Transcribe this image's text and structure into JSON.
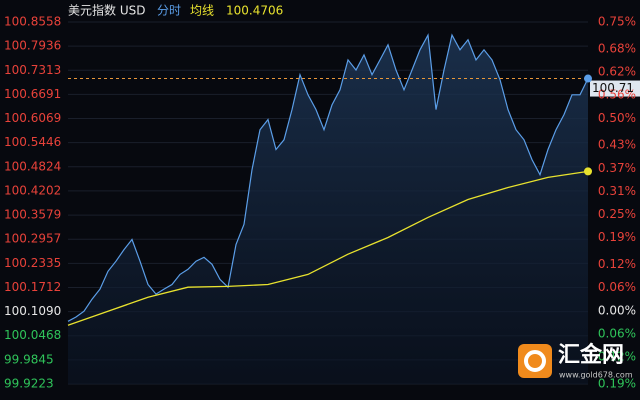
{
  "chart_data": {
    "type": "line",
    "title": "美元指数 USD",
    "ylim": [
      99.9223,
      100.8558
    ],
    "yticks": [
      {
        "value": 100.8558,
        "label": "100.8558"
      },
      {
        "value": 100.7936,
        "label": "100.7936"
      },
      {
        "value": 100.7313,
        "label": "100.7313"
      },
      {
        "value": 100.6691,
        "label": "100.6691"
      },
      {
        "value": 100.6069,
        "label": "100.6069"
      },
      {
        "value": 100.5446,
        "label": "100.5446"
      },
      {
        "value": 100.4824,
        "label": "100.4824"
      },
      {
        "value": 100.4202,
        "label": "100.4202"
      },
      {
        "value": 100.3579,
        "label": "100.3579"
      },
      {
        "value": 100.2957,
        "label": "100.2957"
      },
      {
        "value": 100.2335,
        "label": "100.2335"
      },
      {
        "value": 100.1712,
        "label": "100.1712"
      },
      {
        "value": 100.109,
        "label": "100.1090"
      },
      {
        "value": 100.0468,
        "label": "100.0468"
      },
      {
        "value": 99.9845,
        "label": "99.9845"
      },
      {
        "value": 99.9223,
        "label": "99.9223"
      }
    ],
    "y2lim": [
      -0.19,
      0.75
    ],
    "y2ticks": [
      {
        "value": 0.75,
        "label": "0.75%"
      },
      {
        "value": 0.68,
        "label": "0.68%"
      },
      {
        "value": 0.62,
        "label": "0.62%"
      },
      {
        "value": 0.56,
        "label": "0.56%"
      },
      {
        "value": 0.5,
        "label": "0.50%"
      },
      {
        "value": 0.43,
        "label": "0.43%"
      },
      {
        "value": 0.37,
        "label": "0.37%"
      },
      {
        "value": 0.31,
        "label": "0.31%"
      },
      {
        "value": 0.25,
        "label": "0.25%"
      },
      {
        "value": 0.19,
        "label": "0.19%"
      },
      {
        "value": 0.12,
        "label": "0.12%"
      },
      {
        "value": 0.06,
        "label": "0.06%"
      },
      {
        "value": 0,
        "label": "0.00%"
      },
      {
        "value": -0.06,
        "label": "0.06%"
      },
      {
        "value": -0.12,
        "label": "0.12%"
      },
      {
        "value": -0.19,
        "label": "0.19%"
      }
    ],
    "grid": true,
    "series": [
      {
        "name": "分时",
        "color": "#5b9ee8",
        "last_label": "100.71",
        "values": [
          100.084,
          100.095,
          100.11,
          100.141,
          100.167,
          100.213,
          100.239,
          100.269,
          100.295,
          100.239,
          100.179,
          100.154,
          100.167,
          100.179,
          100.205,
          100.218,
          100.239,
          100.249,
          100.231,
          100.192,
          100.172,
          100.282,
          100.334,
          100.475,
          100.578,
          100.604,
          100.527,
          100.552,
          100.63,
          100.72,
          100.668,
          100.63,
          100.578,
          100.642,
          100.681,
          100.758,
          100.732,
          100.771,
          100.72,
          100.758,
          100.797,
          100.732,
          100.681,
          100.732,
          100.784,
          100.822,
          100.63,
          100.732,
          100.822,
          100.784,
          100.81,
          100.758,
          100.784,
          100.758,
          100.707,
          100.63,
          100.578,
          100.552,
          100.501,
          100.462,
          100.527,
          100.578,
          100.617,
          100.668,
          100.668,
          100.71
        ]
      },
      {
        "name": "均线",
        "color": "#e8e22e",
        "current": 100.4706,
        "values": [
          100.074,
          100.11,
          100.146,
          100.172,
          100.174,
          100.179,
          100.205,
          100.257,
          100.3,
          100.352,
          100.398,
          100.429,
          100.455,
          100.4706
        ]
      }
    ]
  },
  "watermark": {
    "name": "汇金网",
    "url": "www.gold678.com"
  }
}
